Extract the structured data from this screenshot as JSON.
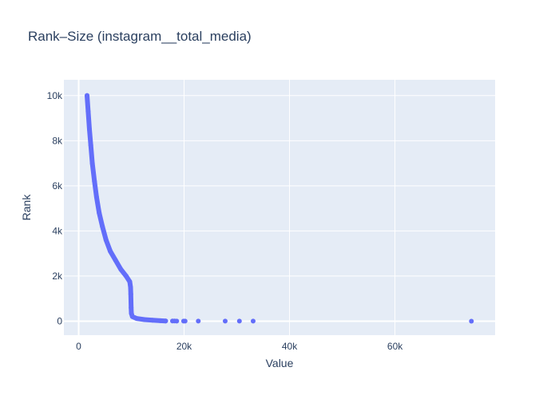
{
  "chart_data": {
    "type": "scatter",
    "title": "Rank–Size (instagram__total_media)",
    "xlabel": "Value",
    "ylabel": "Rank",
    "xlim": [
      -2800,
      79000
    ],
    "ylim": [
      -620,
      10700
    ],
    "x_ticks": [
      0,
      20000,
      40000,
      60000
    ],
    "x_tick_labels": [
      "0",
      "20k",
      "40k",
      "60k"
    ],
    "y_ticks": [
      0,
      2000,
      4000,
      6000,
      8000,
      10000
    ],
    "y_tick_labels": [
      "0",
      "2k",
      "4k",
      "6k",
      "8k",
      "10k"
    ],
    "grid": true,
    "legend": "none",
    "colors": {
      "marker": "#636efa",
      "plot_bg": "#e5ecf6",
      "grid": "#ffffff",
      "text": "#2a3f5f"
    },
    "series": [
      {
        "points": [
          {
            "x": 1600,
            "y": 10000
          },
          {
            "x": 1800,
            "y": 9300
          },
          {
            "x": 2050,
            "y": 8500
          },
          {
            "x": 2300,
            "y": 7800
          },
          {
            "x": 2600,
            "y": 7000
          },
          {
            "x": 3000,
            "y": 6200
          },
          {
            "x": 3400,
            "y": 5500
          },
          {
            "x": 3900,
            "y": 4800
          },
          {
            "x": 4500,
            "y": 4200
          },
          {
            "x": 5200,
            "y": 3600
          },
          {
            "x": 6000,
            "y": 3100
          },
          {
            "x": 7000,
            "y": 2700
          },
          {
            "x": 8000,
            "y": 2300
          },
          {
            "x": 9000,
            "y": 2000
          },
          {
            "x": 9700,
            "y": 1750
          },
          {
            "x": 9850,
            "y": 1500
          },
          {
            "x": 9900,
            "y": 1200
          },
          {
            "x": 9920,
            "y": 900
          },
          {
            "x": 9950,
            "y": 600
          },
          {
            "x": 10000,
            "y": 350
          },
          {
            "x": 10200,
            "y": 200
          },
          {
            "x": 11000,
            "y": 120
          },
          {
            "x": 12500,
            "y": 70
          },
          {
            "x": 14000,
            "y": 40
          },
          {
            "x": 15500,
            "y": 20
          },
          {
            "x": 16500,
            "y": 10
          },
          {
            "x": 17800,
            "y": 6
          },
          {
            "x": 18200,
            "y": 5
          },
          {
            "x": 18600,
            "y": 4
          },
          {
            "x": 19900,
            "y": 3
          },
          {
            "x": 20200,
            "y": 3
          },
          {
            "x": 22700,
            "y": 2
          },
          {
            "x": 27800,
            "y": 2
          },
          {
            "x": 30500,
            "y": 1
          },
          {
            "x": 33100,
            "y": 1
          },
          {
            "x": 74500,
            "y": 0
          }
        ]
      }
    ]
  }
}
